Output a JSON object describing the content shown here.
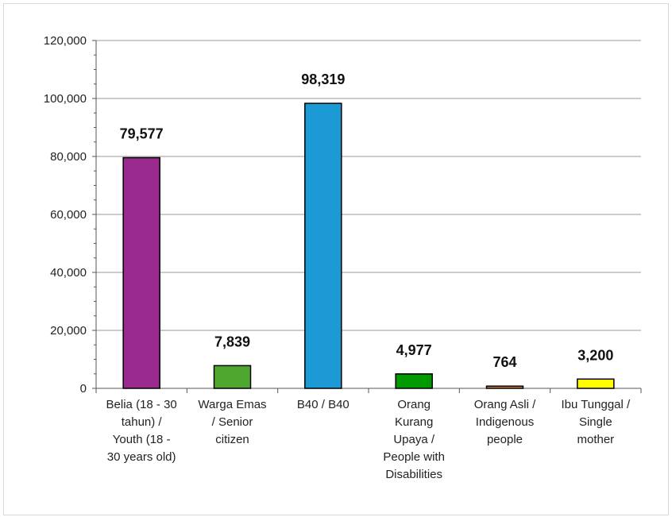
{
  "chart_data": {
    "type": "bar",
    "categories": [
      [
        "Belia (18 - 30",
        "tahun) /",
        "Youth (18 -",
        "30 years old)"
      ],
      [
        "Warga Emas",
        "/ Senior",
        "citizen"
      ],
      [
        "B40 / B40"
      ],
      [
        "Orang",
        "Kurang",
        "Upaya /",
        "People with",
        "Disabilities"
      ],
      [
        "Orang Asli /",
        "Indigenous",
        "people"
      ],
      [
        "Ibu Tunggal /",
        "Single",
        "mother"
      ]
    ],
    "values": [
      79577,
      7839,
      98319,
      4977,
      764,
      3200
    ],
    "data_labels": [
      "79,577",
      "7,839",
      "98,319",
      "4,977",
      "764",
      "3,200"
    ],
    "bar_colors": [
      "#9b2a8e",
      "#4ea72e",
      "#1b9ad6",
      "#009a00",
      "#e07b3c",
      "#ffff00"
    ],
    "title": "",
    "xlabel": "",
    "ylabel": "",
    "ylim": [
      0,
      120000
    ],
    "yticks": [
      0,
      20000,
      40000,
      60000,
      80000,
      100000,
      120000
    ],
    "ytick_labels": [
      "0",
      "20,000",
      "40,000",
      "60,000",
      "80,000",
      "100,000",
      "120,000"
    ],
    "grid": true,
    "legend": "none"
  }
}
